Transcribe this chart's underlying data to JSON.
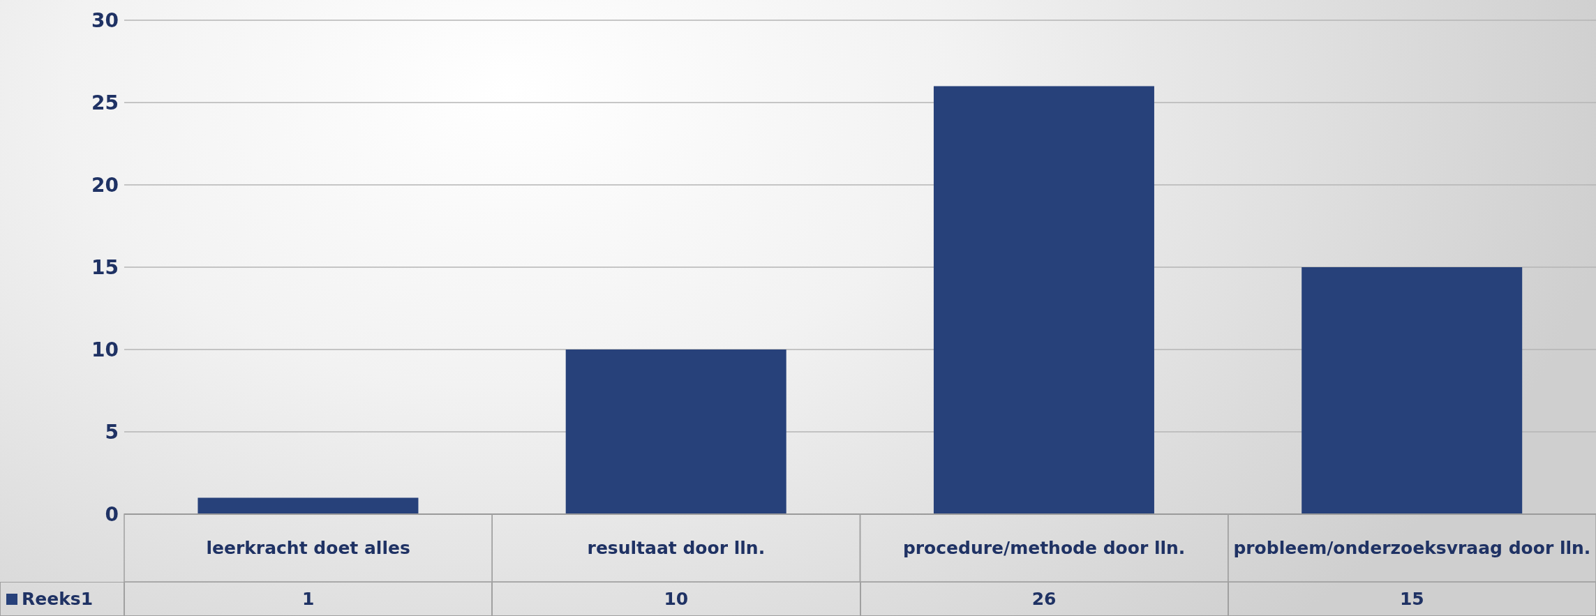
{
  "chart_data": {
    "type": "bar",
    "categories": [
      "leerkracht doet alles",
      "resultaat door lln.",
      "procedure/methode door lln.",
      "probleem/onderzoeksvraag door lln."
    ],
    "series": [
      {
        "name": "Reeks1",
        "color": "#27417a",
        "values": [
          1,
          10,
          26,
          15
        ]
      }
    ],
    "ylim": [
      0,
      30
    ],
    "yticks": [
      0,
      5,
      10,
      15,
      20,
      25,
      30
    ],
    "grid": "y",
    "legend": "bottom",
    "data_labels": true
  }
}
